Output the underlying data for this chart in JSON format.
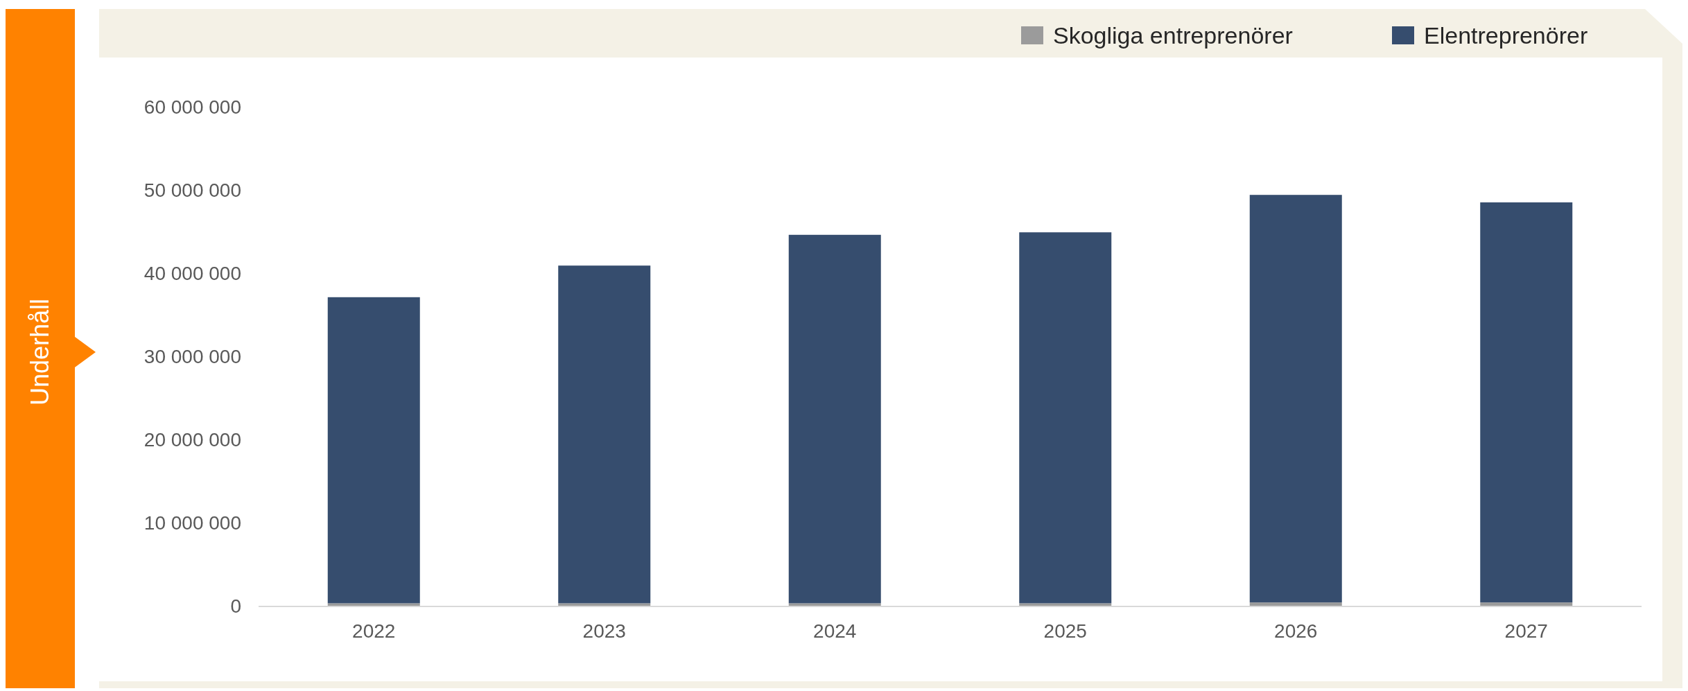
{
  "chart_data": {
    "type": "bar",
    "title": "Underhåll",
    "categories": [
      "2022",
      "2023",
      "2024",
      "2025",
      "2026",
      "2027"
    ],
    "stacked": true,
    "legend": "top right",
    "grid": false,
    "ylim": [
      0,
      60000000
    ],
    "yticks": [
      {
        "value": 0,
        "label": "0"
      },
      {
        "value": 10000000,
        "label": "10 000 000"
      },
      {
        "value": 20000000,
        "label": "20 000 000"
      },
      {
        "value": 30000000,
        "label": "30 000 000"
      },
      {
        "value": 40000000,
        "label": "40 000 000"
      },
      {
        "value": 50000000,
        "label": "50 000 000"
      },
      {
        "value": 60000000,
        "label": "60 000 000"
      }
    ],
    "series": [
      {
        "name": "Skogliga entreprenörer",
        "color": "#9b9b9b",
        "values": [
          300000,
          300000,
          300000,
          300000,
          400000,
          400000
        ]
      },
      {
        "name": "Elentreprenörer",
        "color": "#364d6e",
        "values": [
          36800000,
          40600000,
          44300000,
          44600000,
          49000000,
          48100000
        ]
      }
    ]
  }
}
